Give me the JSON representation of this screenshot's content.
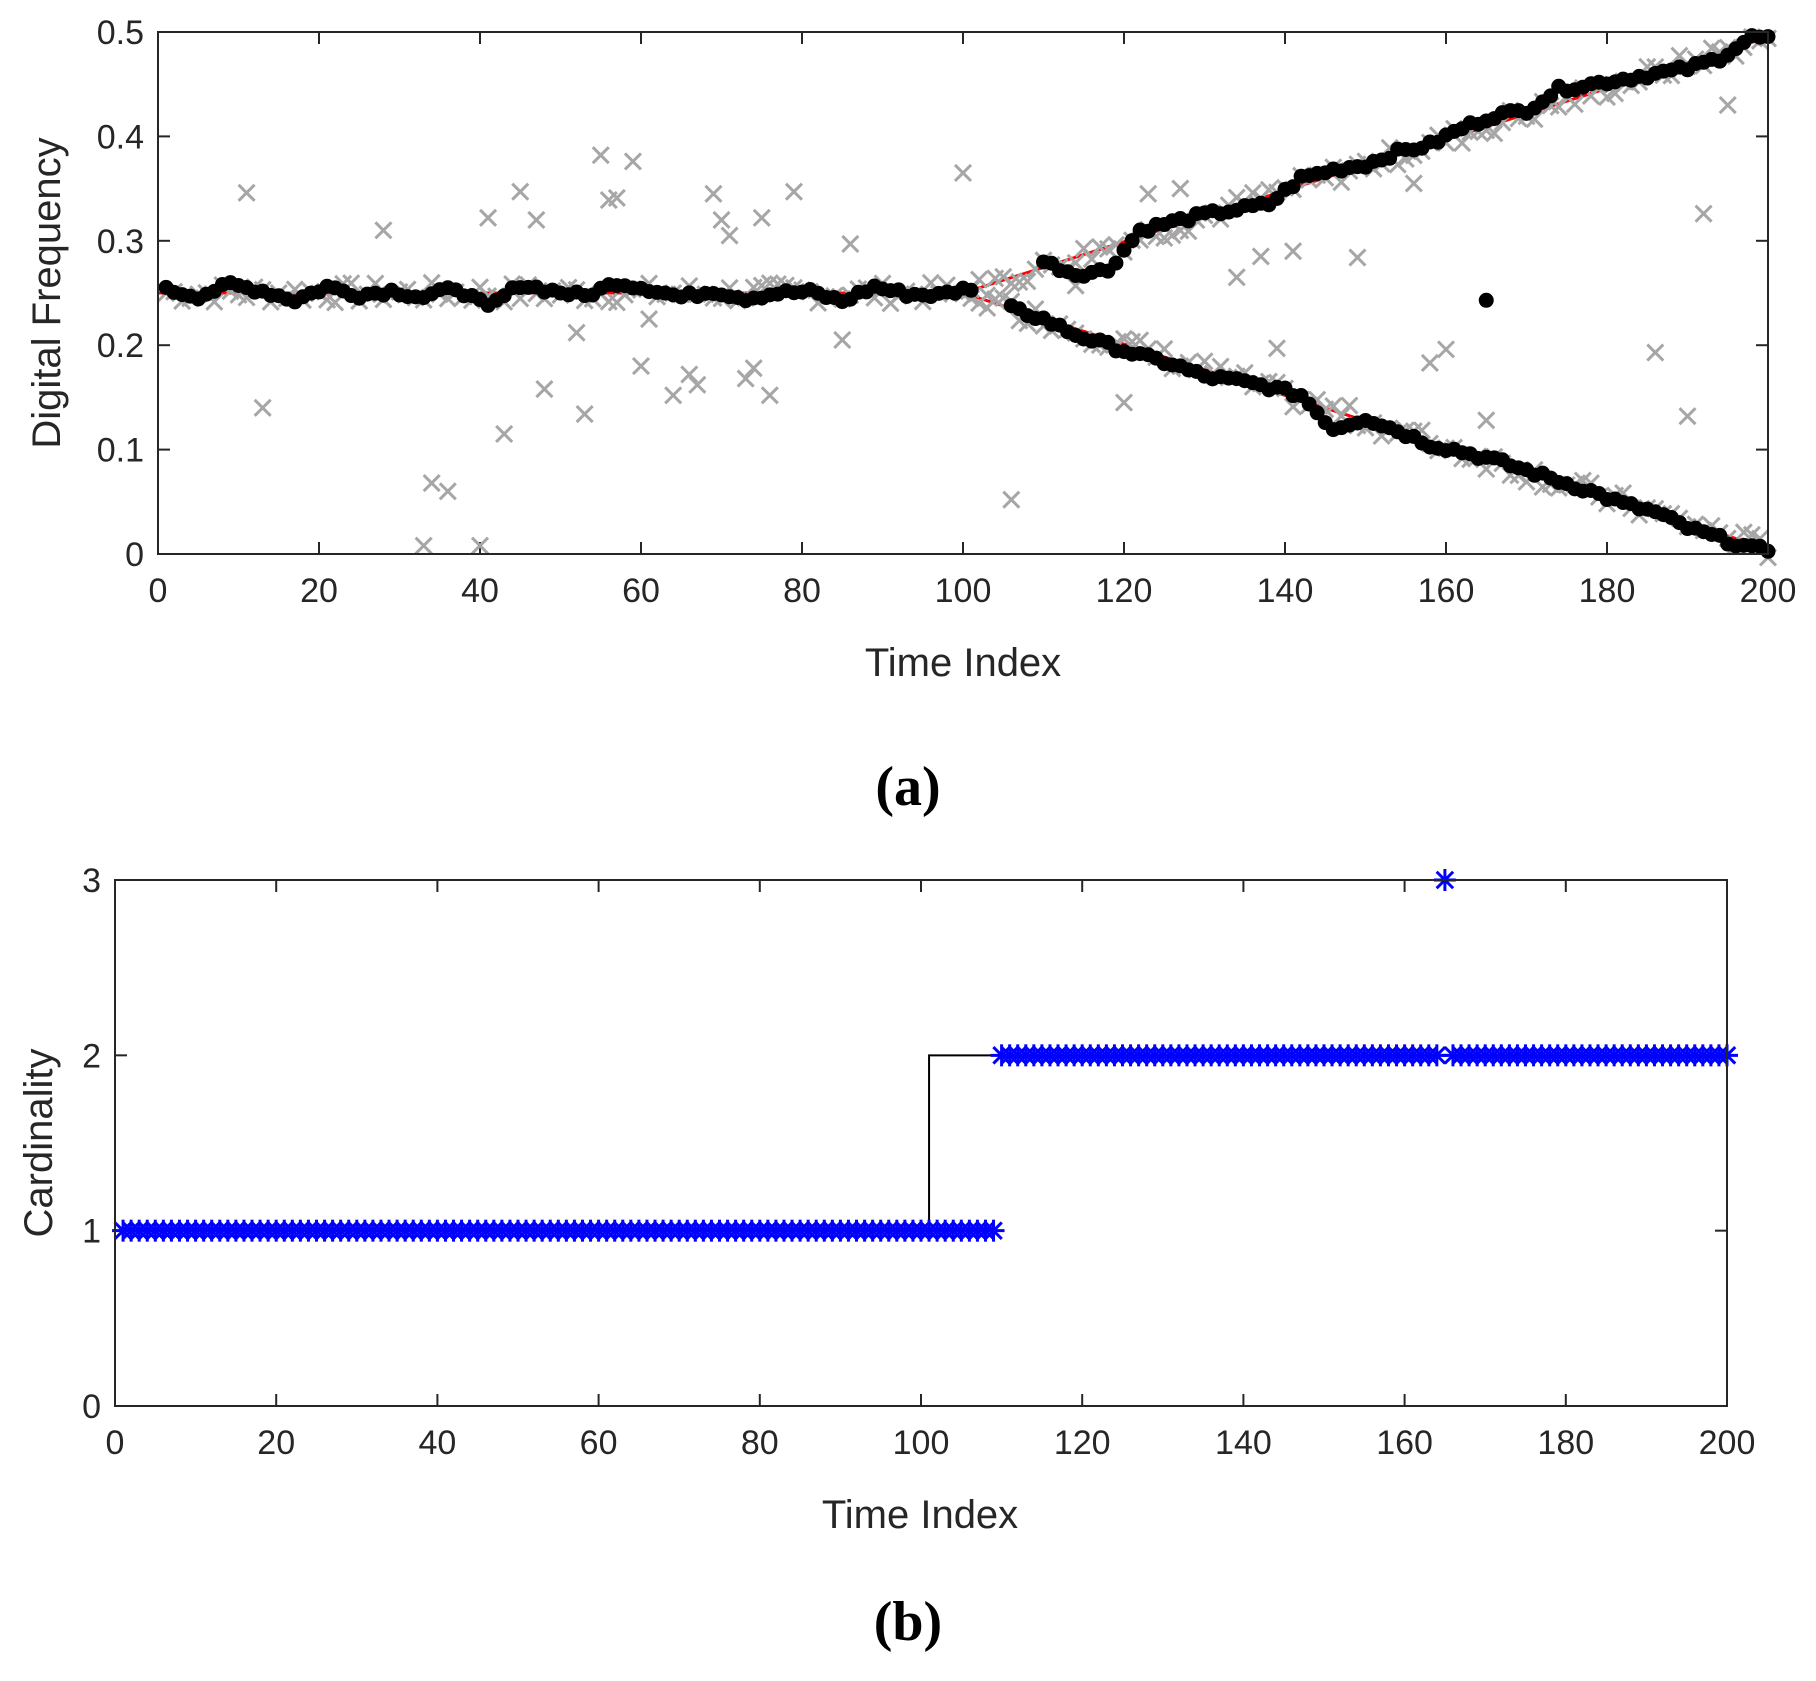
{
  "chart_data": [
    {
      "type": "scatter",
      "panel_label": "(a)",
      "xlabel": "Time Index",
      "ylabel": "Digital Frequency",
      "xlim": [
        0,
        200
      ],
      "ylim": [
        0,
        0.5
      ],
      "xticks": [
        0,
        20,
        40,
        60,
        80,
        100,
        120,
        140,
        160,
        180,
        200
      ],
      "xtick_labels": [
        "0",
        "20",
        "40",
        "60",
        "80",
        "100",
        "120",
        "140",
        "160",
        "180",
        "200"
      ],
      "yticks": [
        0,
        0.1,
        0.2,
        0.3,
        0.4,
        0.5
      ],
      "ytick_labels": [
        "0",
        "0.1",
        "0.2",
        "0.3",
        "0.4",
        "0.5"
      ],
      "grid": false,
      "colors": {
        "true_track": "#ff0000",
        "estimates": "#000000",
        "measurements": "#a6a6a6"
      },
      "true_tracks": [
        {
          "x": [
            0,
            100
          ],
          "y": [
            0.25,
            0.25
          ]
        },
        {
          "x": [
            100,
            200
          ],
          "y": [
            0.25,
            0.495
          ]
        },
        {
          "x": [
            100,
            200
          ],
          "y": [
            0.25,
            0.005
          ]
        }
      ],
      "estimates_single": {
        "x": [
          1,
          5,
          9,
          13,
          17,
          21,
          25,
          29,
          33,
          37,
          41,
          45,
          49,
          53,
          57,
          61,
          65,
          69,
          73,
          77,
          81,
          85,
          89,
          93,
          97,
          101
        ],
        "y": [
          0.253,
          0.247,
          0.258,
          0.252,
          0.243,
          0.256,
          0.248,
          0.252,
          0.246,
          0.255,
          0.236,
          0.258,
          0.252,
          0.247,
          0.26,
          0.254,
          0.246,
          0.252,
          0.245,
          0.25,
          0.251,
          0.242,
          0.256,
          0.249,
          0.248,
          0.255
        ]
      },
      "estimates_upper": {
        "x": [
          110,
          114,
          118,
          122,
          126,
          130,
          134,
          138,
          142,
          146,
          150,
          154,
          158,
          162,
          166,
          170,
          174,
          178,
          182,
          186,
          190,
          194,
          198,
          200
        ],
        "y": [
          0.28,
          0.268,
          0.272,
          0.31,
          0.318,
          0.325,
          0.33,
          0.335,
          0.36,
          0.368,
          0.373,
          0.385,
          0.392,
          0.408,
          0.42,
          0.425,
          0.445,
          0.45,
          0.455,
          0.46,
          0.465,
          0.475,
          0.495,
          0.494
        ]
      },
      "estimates_lower": {
        "x": [
          106,
          110,
          114,
          118,
          122,
          126,
          130,
          134,
          138,
          142,
          146,
          150,
          154,
          158,
          162,
          166,
          170,
          174,
          178,
          182,
          186,
          190,
          194,
          198,
          200
        ],
        "y": [
          0.235,
          0.225,
          0.21,
          0.2,
          0.19,
          0.182,
          0.17,
          0.166,
          0.16,
          0.152,
          0.12,
          0.13,
          0.118,
          0.105,
          0.098,
          0.09,
          0.08,
          0.07,
          0.06,
          0.048,
          0.04,
          0.025,
          0.015,
          0.005,
          0.004
        ]
      },
      "estimates_outlier": {
        "x": [
          165
        ],
        "y": [
          0.243
        ]
      },
      "measurements_clutter": {
        "x": [
          11,
          13,
          28,
          33,
          34,
          36,
          40,
          41,
          43,
          45,
          47,
          48,
          52,
          53,
          55,
          56,
          57,
          59,
          60,
          61,
          64,
          66,
          67,
          69,
          70,
          71,
          73,
          74,
          75,
          76,
          79,
          85,
          86,
          100,
          106,
          114,
          120,
          123,
          127,
          134,
          137,
          139,
          141,
          149,
          156,
          158,
          160,
          165,
          186,
          190,
          192,
          195
        ],
        "y": [
          0.346,
          0.14,
          0.31,
          0.008,
          0.068,
          0.06,
          0.008,
          0.322,
          0.115,
          0.347,
          0.32,
          0.158,
          0.212,
          0.134,
          0.382,
          0.339,
          0.341,
          0.376,
          0.18,
          0.225,
          0.152,
          0.172,
          0.162,
          0.345,
          0.32,
          0.305,
          0.168,
          0.178,
          0.322,
          0.152,
          0.347,
          0.205,
          0.297,
          0.365,
          0.052,
          0.257,
          0.145,
          0.345,
          0.35,
          0.265,
          0.285,
          0.197,
          0.29,
          0.284,
          0.355,
          0.183,
          0.196,
          0.128,
          0.193,
          0.132,
          0.326,
          0.43
        ]
      },
      "series": [
        {
          "name": "",
          "values": []
        }
      ]
    },
    {
      "type": "scatter",
      "panel_label": "(b)",
      "xlabel": "Time Index",
      "ylabel": "Cardinality",
      "xlim": [
        0,
        200
      ],
      "ylim": [
        0,
        3
      ],
      "xticks": [
        0,
        20,
        40,
        60,
        80,
        100,
        120,
        140,
        160,
        180,
        200
      ],
      "xtick_labels": [
        "0",
        "20",
        "40",
        "60",
        "80",
        "100",
        "120",
        "140",
        "160",
        "180",
        "200"
      ],
      "yticks": [
        0,
        1,
        2,
        3
      ],
      "ytick_labels": [
        "0",
        "1",
        "2",
        "3"
      ],
      "grid": false,
      "colors": {
        "true_cardinality": "#000000",
        "estimated_cardinality": "#0000ff"
      },
      "true_cardinality": {
        "x": [
          0,
          101,
          101,
          200
        ],
        "y": [
          1,
          1,
          2,
          2
        ]
      },
      "estimated_cardinality": {
        "segments": [
          {
            "x_start": 1,
            "x_end": 109,
            "value": 1
          },
          {
            "x_start": 110,
            "x_end": 164,
            "value": 2
          },
          {
            "x_start": 165,
            "x_end": 165,
            "value": 3
          },
          {
            "x_start": 166,
            "x_end": 200,
            "value": 2
          }
        ]
      }
    }
  ]
}
